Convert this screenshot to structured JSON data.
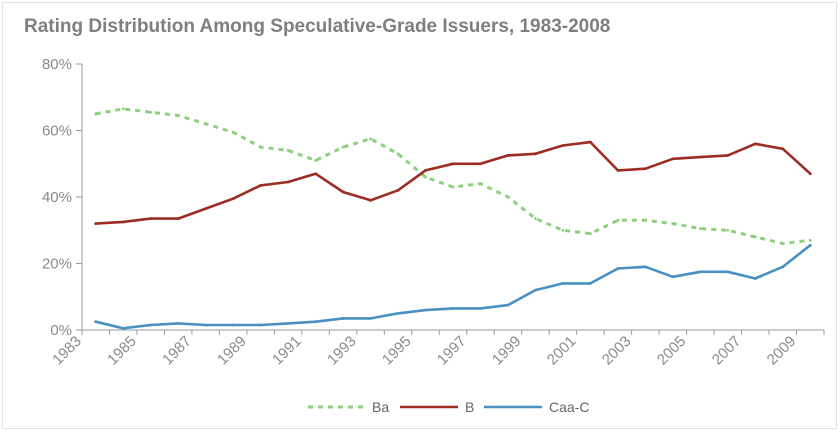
{
  "chart_data": {
    "type": "line",
    "title": "Rating Distribution Among Speculative-Grade Issuers, 1983-2008",
    "xlabel": "",
    "ylabel": "",
    "xlim": [
      1983,
      2010
    ],
    "ylim": [
      0,
      80
    ],
    "x_ticks": [
      "1983",
      "1985",
      "1987",
      "1989",
      "1991",
      "1993",
      "1995",
      "1997",
      "1999",
      "2001",
      "2003",
      "2005",
      "2007",
      "2009"
    ],
    "y_ticks": [
      "0%",
      "20%",
      "40%",
      "60%",
      "80%"
    ],
    "y_tick_values": [
      0,
      20,
      40,
      60,
      80
    ],
    "grid": false,
    "legend_position": "bottom",
    "x": [
      1983.5,
      1984.5,
      1985.5,
      1986.5,
      1987.5,
      1988.5,
      1989.5,
      1990.5,
      1991.5,
      1992.5,
      1993.5,
      1994.5,
      1995.5,
      1996.5,
      1997.5,
      1998.5,
      1999.5,
      2000.5,
      2001.5,
      2002.5,
      2003.5,
      2004.5,
      2005.5,
      2006.5,
      2007.5,
      2008.5,
      2009.5
    ],
    "series": [
      {
        "name": "Ba",
        "style": "dashed",
        "color": "#8fcf7f",
        "values": [
          65,
          66.5,
          65.5,
          64.5,
          62,
          59.5,
          55,
          54,
          51,
          55,
          57.5,
          53,
          46,
          43,
          44,
          40,
          33.5,
          30,
          29,
          33,
          33,
          32,
          30.5,
          30,
          28,
          26,
          27
        ]
      },
      {
        "name": "B",
        "style": "solid",
        "color": "#9b2d22",
        "values": [
          32,
          32.5,
          33.5,
          33.5,
          36.5,
          39.5,
          43.5,
          44.5,
          47,
          41.5,
          39,
          42,
          48,
          50,
          50,
          52.5,
          53,
          55.5,
          56.5,
          48,
          48.5,
          51.5,
          52,
          52.5,
          56,
          54.5,
          47
        ]
      },
      {
        "name": "Caa-C",
        "style": "solid",
        "color": "#4a90c2",
        "values": [
          2.5,
          0.5,
          1.5,
          2,
          1.5,
          1.5,
          1.5,
          2,
          2.5,
          3.5,
          3.5,
          5,
          6,
          6.5,
          6.5,
          7.5,
          12,
          14,
          14,
          18.5,
          19,
          16,
          17.5,
          17.5,
          15.5,
          19,
          25.5
        ]
      }
    ]
  }
}
